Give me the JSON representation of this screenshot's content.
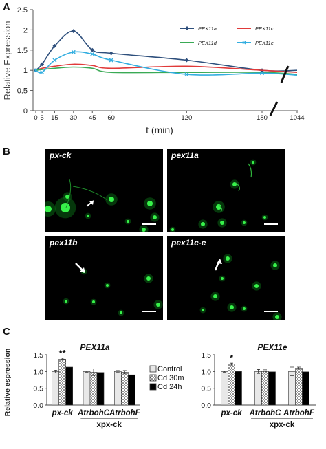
{
  "panels": {
    "A": {
      "letter": "A"
    },
    "B": {
      "letter": "B",
      "images": [
        {
          "label": "px-ck"
        },
        {
          "label": "pex11a"
        },
        {
          "label": "pex11b"
        },
        {
          "label": "pex11c-e"
        }
      ]
    },
    "C": {
      "letter": "C"
    }
  },
  "chart_data": [
    {
      "type": "line",
      "panel": "A",
      "title": "",
      "xlabel": "t (min)",
      "ylabel": "Relative Expression",
      "x": [
        0,
        5,
        15,
        30,
        45,
        60,
        120,
        180,
        1044
      ],
      "x_tick_labels": [
        "0",
        "5",
        "15",
        "30",
        "45",
        "60",
        "120",
        "180",
        "1044"
      ],
      "y_ticks": [
        0,
        0.5,
        1,
        1.5,
        2,
        2.5
      ],
      "ylim": [
        0,
        2.5
      ],
      "axis_break_between": [
        180,
        1044
      ],
      "legend_position": "top-right",
      "series": [
        {
          "name": "PEX11a",
          "color": "#2e4f7c",
          "marker": "diamond",
          "values": [
            1.0,
            1.15,
            1.6,
            1.97,
            1.5,
            1.42,
            1.25,
            1.0,
            1.0
          ]
        },
        {
          "name": "PEX11c",
          "color": "#e03a3a",
          "marker": "none",
          "values": [
            1.0,
            1.05,
            1.1,
            1.15,
            1.12,
            1.05,
            1.1,
            1.0,
            0.95
          ]
        },
        {
          "name": "PEX11d",
          "color": "#3aaa55",
          "marker": "none",
          "values": [
            1.0,
            1.02,
            1.05,
            1.08,
            1.05,
            0.95,
            0.95,
            0.95,
            0.9
          ]
        },
        {
          "name": "PEX11e",
          "color": "#33aee0",
          "marker": "cross",
          "values": [
            1.0,
            0.95,
            1.25,
            1.45,
            1.4,
            1.25,
            0.9,
            0.93,
            0.88
          ]
        }
      ]
    },
    {
      "type": "bar",
      "panel": "C",
      "title": "PEX11a",
      "ylabel": "Relative espression",
      "y_ticks": [
        0,
        0.5,
        1.0,
        1.5
      ],
      "ylim": [
        0,
        1.5
      ],
      "categories": [
        "px-ck",
        "AtrbohC",
        "AtrbohF"
      ],
      "group_label": "xpx-ck",
      "series": [
        {
          "name": "Control",
          "fill": "#e8e8e8",
          "values": [
            1.0,
            1.0,
            1.0
          ],
          "errors": [
            0.04,
            0.02,
            0.03
          ]
        },
        {
          "name": "Cd 30m",
          "fill": "dotted",
          "values": [
            1.37,
            0.98,
            0.98
          ],
          "errors": [
            0.03,
            0.1,
            0.05
          ]
        },
        {
          "name": "Cd 24h",
          "fill": "#000000",
          "values": [
            1.13,
            0.97,
            0.9
          ],
          "errors": [
            0,
            0,
            0
          ]
        }
      ],
      "annotations": [
        {
          "text": "**",
          "category": "px-ck",
          "series": "Cd 30m"
        }
      ],
      "legend_position": "right"
    },
    {
      "type": "bar",
      "panel": "C",
      "title": "PEX11e",
      "ylabel": "",
      "y_ticks": [
        0,
        0.5,
        1.0,
        1.5
      ],
      "ylim": [
        0,
        1.5
      ],
      "categories": [
        "px-ck",
        "AtrbohC",
        "AtrbohF"
      ],
      "group_label": "xpx-ck",
      "series": [
        {
          "name": "Control",
          "fill": "#e8e8e8",
          "values": [
            1.0,
            1.0,
            1.0
          ],
          "errors": [
            0.02,
            0.06,
            0.13
          ]
        },
        {
          "name": "Cd 30m",
          "fill": "dotted",
          "values": [
            1.22,
            1.0,
            1.1
          ],
          "errors": [
            0.03,
            0.05,
            0.03
          ]
        },
        {
          "name": "Cd 24h",
          "fill": "#000000",
          "values": [
            1.0,
            0.99,
            0.99
          ],
          "errors": [
            0,
            0,
            0
          ]
        }
      ],
      "annotations": [
        {
          "text": "*",
          "category": "px-ck",
          "series": "Cd 30m"
        }
      ]
    }
  ]
}
